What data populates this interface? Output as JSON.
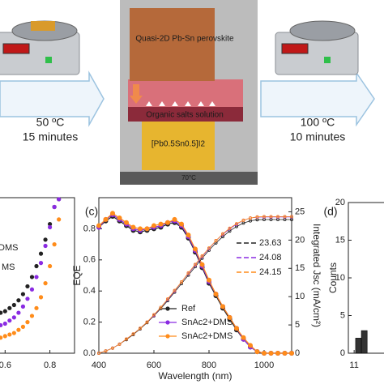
{
  "schematic": {
    "step1": {
      "temperature": "50 ºC",
      "time": "15 minutes"
    },
    "diagram": {
      "top_layer": "Quasi-2D Pb-Sn perovskite",
      "solution": "Organic salts solution",
      "bottom_layer": "[Pb0.5Sn0.5]I2",
      "substrate_temperature": "70°C"
    },
    "step2": {
      "temperature": "100 ºC",
      "time": "10 minutes"
    }
  },
  "chart_data": [
    {
      "type": "scatter",
      "legend_fragments": [
        "DMS",
        "MS"
      ],
      "x": [
        0.58,
        0.6,
        0.62,
        0.64,
        0.66,
        0.68,
        0.7,
        0.72,
        0.74,
        0.76,
        0.78,
        0.8,
        0.82,
        0.84
      ],
      "xlim": [
        0.57,
        0.91
      ],
      "xticks": [
        0.6,
        0.8
      ],
      "ylim": [
        0,
        10
      ],
      "series": [
        {
          "color": "#222222",
          "values": [
            2.6,
            2.7,
            2.9,
            3.1,
            3.4,
            3.8,
            4.3,
            4.9,
            5.6,
            6.4,
            7.3,
            8.3,
            9.4,
            9.9
          ]
        },
        {
          "color": "#8a2be2",
          "values": [
            1.8,
            1.9,
            2.1,
            2.3,
            2.6,
            3.0,
            3.5,
            4.1,
            4.9,
            5.8,
            6.9,
            8.1,
            9.4,
            9.9
          ]
        },
        {
          "color": "#ff8c1a",
          "values": [
            1.0,
            1.1,
            1.2,
            1.3,
            1.5,
            1.7,
            2.0,
            2.4,
            2.9,
            3.6,
            4.5,
            5.6,
            7.0,
            8.6
          ]
        }
      ]
    },
    {
      "type": "line",
      "panel_label": "(c)",
      "xlabel": "Wavelength (nm)",
      "ylabel": "EQE",
      "y2label": "Integrated Jsc (mA/cm²)",
      "x": [
        400,
        425,
        450,
        475,
        500,
        525,
        550,
        575,
        600,
        625,
        650,
        675,
        700,
        725,
        750,
        775,
        800,
        825,
        850,
        875,
        900,
        925,
        950,
        975,
        1000,
        1025,
        1050,
        1075,
        1100
      ],
      "xlim": [
        400,
        1100
      ],
      "xticks": [
        400,
        600,
        800,
        1000
      ],
      "ylim": [
        0,
        1
      ],
      "yticks": [
        {
          "value": 0,
          "label": "0.0"
        },
        0.2,
        0.4,
        0.6,
        0.8
      ],
      "y2lim": [
        0,
        27.5
      ],
      "y2ticks": [
        0,
        5,
        10,
        15,
        20,
        25
      ],
      "series": [
        {
          "name": "Ref",
          "color": "#222222",
          "values": [
            0.81,
            0.85,
            0.88,
            0.85,
            0.82,
            0.79,
            0.78,
            0.79,
            0.8,
            0.81,
            0.83,
            0.84,
            0.81,
            0.74,
            0.65,
            0.55,
            0.45,
            0.37,
            0.29,
            0.22,
            0.15,
            0.09,
            0.04,
            0.01,
            0,
            0,
            0,
            0,
            0
          ]
        },
        {
          "name": "SnAc2+DMS",
          "color": "#8a2be2",
          "values": [
            0.81,
            0.86,
            0.89,
            0.86,
            0.83,
            0.8,
            0.79,
            0.8,
            0.81,
            0.82,
            0.84,
            0.85,
            0.82,
            0.75,
            0.66,
            0.56,
            0.46,
            0.38,
            0.3,
            0.23,
            0.16,
            0.09,
            0.04,
            0.01,
            0,
            0,
            0,
            0,
            0
          ]
        },
        {
          "name": "SnAc2+DMS",
          "color": "#ff8c1a",
          "values": [
            0.82,
            0.86,
            0.9,
            0.87,
            0.84,
            0.81,
            0.8,
            0.8,
            0.82,
            0.83,
            0.84,
            0.86,
            0.83,
            0.76,
            0.67,
            0.57,
            0.47,
            0.38,
            0.3,
            0.23,
            0.16,
            0.1,
            0.05,
            0.01,
            0,
            0,
            0,
            0,
            0
          ]
        },
        {
          "name": "23.63",
          "color": "#222222",
          "axis": "y2",
          "values": [
            0,
            0.4,
            0.9,
            1.6,
            2.4,
            3.3,
            4.3,
            5.4,
            6.6,
            7.9,
            9.3,
            10.8,
            12.3,
            13.8,
            15.3,
            16.8,
            18.2,
            19.5,
            20.6,
            21.6,
            22.4,
            23.0,
            23.4,
            23.6,
            23.63,
            23.63,
            23.63,
            23.63,
            23.63
          ]
        },
        {
          "name": "24.08",
          "color": "#8a2be2",
          "axis": "y2",
          "values": [
            0,
            0.4,
            0.9,
            1.6,
            2.5,
            3.4,
            4.4,
            5.5,
            6.7,
            8.1,
            9.5,
            11.0,
            12.6,
            14.1,
            15.6,
            17.1,
            18.5,
            19.9,
            21.0,
            22.0,
            22.8,
            23.5,
            23.9,
            24.05,
            24.08,
            24.08,
            24.08,
            24.08,
            24.08
          ]
        },
        {
          "name": "24.15",
          "color": "#ff8c1a",
          "axis": "y2",
          "values": [
            0,
            0.4,
            0.9,
            1.6,
            2.5,
            3.4,
            4.4,
            5.5,
            6.8,
            8.1,
            9.6,
            11.1,
            12.6,
            14.2,
            15.7,
            17.2,
            18.6,
            19.9,
            21.1,
            22.1,
            22.9,
            23.5,
            23.9,
            24.1,
            24.15,
            24.15,
            24.15,
            24.15,
            24.15
          ]
        }
      ]
    },
    {
      "type": "histogram",
      "panel_label": "(d)",
      "ylabel": "Counts",
      "bins": [
        11.05,
        11.25,
        11.45
      ],
      "counts": [
        2,
        3
      ],
      "color": "#333333",
      "xlim": [
        10.8,
        12.2
      ],
      "xticks": [
        11
      ],
      "ylim": [
        0,
        20
      ],
      "yticks": [
        0,
        5,
        10,
        15,
        20
      ]
    }
  ]
}
